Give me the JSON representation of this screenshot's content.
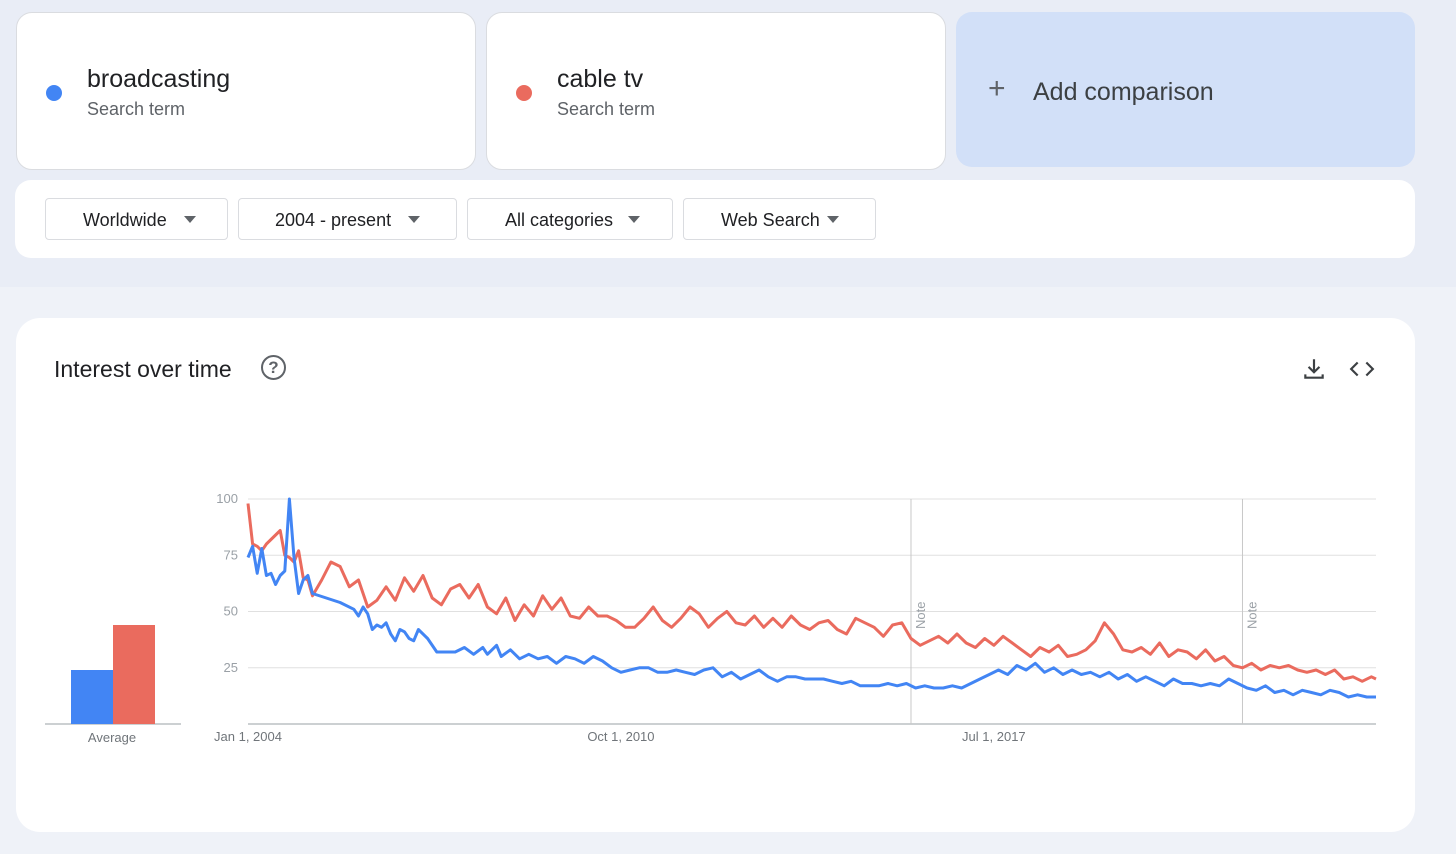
{
  "terms": [
    {
      "name": "broadcasting",
      "type": "Search term",
      "color": "#4285f4"
    },
    {
      "name": "cable tv",
      "type": "Search term",
      "color": "#ea6b5e"
    }
  ],
  "add_comparison": {
    "icon": "+",
    "label": "Add comparison"
  },
  "filters": {
    "region": "Worldwide",
    "time_range": "2004 - present",
    "category": "All categories",
    "search_type": "Web Search"
  },
  "section": {
    "title": "Interest over time",
    "help_icon": "?",
    "download_icon": "download-icon",
    "embed_icon": "embed-icon"
  },
  "chart_data": {
    "type": "line",
    "x_start": "2004-01",
    "x_end": "2024-06",
    "x_tick_labels": [
      "Jan 1, 2004",
      "Oct 1, 2010",
      "Jul 1, 2017"
    ],
    "x_tick_dates": [
      "2004-01",
      "2010-10",
      "2017-07"
    ],
    "y_ticks": [
      25,
      50,
      75,
      100
    ],
    "ylim": [
      0,
      100
    ],
    "grid": true,
    "notes": [
      {
        "date": "2016-01",
        "label": "Note"
      },
      {
        "date": "2022-01",
        "label": "Note"
      }
    ],
    "average": {
      "label": "Average",
      "values": [
        24,
        44
      ]
    },
    "series": [
      {
        "name": "broadcasting",
        "color": "#4285f4",
        "points": [
          [
            "2004-01",
            74
          ],
          [
            "2004-02",
            79
          ],
          [
            "2004-03",
            67
          ],
          [
            "2004-04",
            78
          ],
          [
            "2004-05",
            66
          ],
          [
            "2004-06",
            67
          ],
          [
            "2004-07",
            62
          ],
          [
            "2004-08",
            66
          ],
          [
            "2004-09",
            68
          ],
          [
            "2004-10",
            100
          ],
          [
            "2004-11",
            74
          ],
          [
            "2004-12",
            58
          ],
          [
            "2005-01",
            64
          ],
          [
            "2005-02",
            66
          ],
          [
            "2005-03",
            58
          ],
          [
            "2005-06",
            56
          ],
          [
            "2005-09",
            54
          ],
          [
            "2005-12",
            51
          ],
          [
            "2006-01",
            48
          ],
          [
            "2006-02",
            52
          ],
          [
            "2006-03",
            49
          ],
          [
            "2006-04",
            42
          ],
          [
            "2006-05",
            44
          ],
          [
            "2006-06",
            43
          ],
          [
            "2006-07",
            45
          ],
          [
            "2006-08",
            40
          ],
          [
            "2006-09",
            37
          ],
          [
            "2006-10",
            42
          ],
          [
            "2006-11",
            41
          ],
          [
            "2006-12",
            38
          ],
          [
            "2007-01",
            37
          ],
          [
            "2007-02",
            42
          ],
          [
            "2007-04",
            38
          ],
          [
            "2007-06",
            32
          ],
          [
            "2007-08",
            32
          ],
          [
            "2007-10",
            32
          ],
          [
            "2007-12",
            34
          ],
          [
            "2008-02",
            31
          ],
          [
            "2008-04",
            34
          ],
          [
            "2008-05",
            31
          ],
          [
            "2008-07",
            35
          ],
          [
            "2008-08",
            30
          ],
          [
            "2008-10",
            33
          ],
          [
            "2008-12",
            29
          ],
          [
            "2009-02",
            31
          ],
          [
            "2009-04",
            29
          ],
          [
            "2009-06",
            30
          ],
          [
            "2009-08",
            27
          ],
          [
            "2009-10",
            30
          ],
          [
            "2009-12",
            29
          ],
          [
            "2010-02",
            27
          ],
          [
            "2010-04",
            30
          ],
          [
            "2010-06",
            28
          ],
          [
            "2010-08",
            25
          ],
          [
            "2010-10",
            23
          ],
          [
            "2010-12",
            24
          ],
          [
            "2011-02",
            25
          ],
          [
            "2011-04",
            25
          ],
          [
            "2011-06",
            23
          ],
          [
            "2011-08",
            23
          ],
          [
            "2011-10",
            24
          ],
          [
            "2011-12",
            23
          ],
          [
            "2012-02",
            22
          ],
          [
            "2012-04",
            24
          ],
          [
            "2012-06",
            25
          ],
          [
            "2012-08",
            21
          ],
          [
            "2012-10",
            23
          ],
          [
            "2012-12",
            20
          ],
          [
            "2013-02",
            22
          ],
          [
            "2013-04",
            24
          ],
          [
            "2013-06",
            21
          ],
          [
            "2013-08",
            19
          ],
          [
            "2013-10",
            21
          ],
          [
            "2013-12",
            21
          ],
          [
            "2014-02",
            20
          ],
          [
            "2014-04",
            20
          ],
          [
            "2014-06",
            20
          ],
          [
            "2014-08",
            19
          ],
          [
            "2014-10",
            18
          ],
          [
            "2014-12",
            19
          ],
          [
            "2015-02",
            17
          ],
          [
            "2015-04",
            17
          ],
          [
            "2015-06",
            17
          ],
          [
            "2015-08",
            18
          ],
          [
            "2015-10",
            17
          ],
          [
            "2015-12",
            18
          ],
          [
            "2016-02",
            16
          ],
          [
            "2016-04",
            17
          ],
          [
            "2016-06",
            16
          ],
          [
            "2016-08",
            16
          ],
          [
            "2016-10",
            17
          ],
          [
            "2016-12",
            16
          ],
          [
            "2017-02",
            18
          ],
          [
            "2017-04",
            20
          ],
          [
            "2017-06",
            22
          ],
          [
            "2017-08",
            24
          ],
          [
            "2017-10",
            22
          ],
          [
            "2017-12",
            26
          ],
          [
            "2018-02",
            24
          ],
          [
            "2018-04",
            27
          ],
          [
            "2018-06",
            23
          ],
          [
            "2018-08",
            25
          ],
          [
            "2018-10",
            22
          ],
          [
            "2018-12",
            24
          ],
          [
            "2019-02",
            22
          ],
          [
            "2019-04",
            23
          ],
          [
            "2019-06",
            21
          ],
          [
            "2019-08",
            23
          ],
          [
            "2019-10",
            20
          ],
          [
            "2019-12",
            22
          ],
          [
            "2020-02",
            19
          ],
          [
            "2020-04",
            21
          ],
          [
            "2020-06",
            19
          ],
          [
            "2020-08",
            17
          ],
          [
            "2020-10",
            20
          ],
          [
            "2020-12",
            18
          ],
          [
            "2021-02",
            18
          ],
          [
            "2021-04",
            17
          ],
          [
            "2021-06",
            18
          ],
          [
            "2021-08",
            17
          ],
          [
            "2021-10",
            20
          ],
          [
            "2021-12",
            18
          ],
          [
            "2022-02",
            16
          ],
          [
            "2022-04",
            15
          ],
          [
            "2022-06",
            17
          ],
          [
            "2022-08",
            14
          ],
          [
            "2022-10",
            15
          ],
          [
            "2022-12",
            13
          ],
          [
            "2023-02",
            15
          ],
          [
            "2023-04",
            14
          ],
          [
            "2023-06",
            13
          ],
          [
            "2023-08",
            15
          ],
          [
            "2023-10",
            14
          ],
          [
            "2023-12",
            12
          ],
          [
            "2024-02",
            13
          ],
          [
            "2024-04",
            12
          ],
          [
            "2024-06",
            12
          ]
        ]
      },
      {
        "name": "cable tv",
        "color": "#ea6b5e",
        "points": [
          [
            "2004-01",
            98
          ],
          [
            "2004-02",
            80
          ],
          [
            "2004-03",
            79
          ],
          [
            "2004-04",
            77
          ],
          [
            "2004-05",
            80
          ],
          [
            "2004-06",
            82
          ],
          [
            "2004-07",
            84
          ],
          [
            "2004-08",
            86
          ],
          [
            "2004-09",
            75
          ],
          [
            "2004-10",
            74
          ],
          [
            "2004-11",
            72
          ],
          [
            "2004-12",
            77
          ],
          [
            "2005-01",
            65
          ],
          [
            "2005-02",
            64
          ],
          [
            "2005-03",
            57
          ],
          [
            "2005-05",
            64
          ],
          [
            "2005-07",
            72
          ],
          [
            "2005-09",
            70
          ],
          [
            "2005-11",
            61
          ],
          [
            "2006-01",
            64
          ],
          [
            "2006-03",
            52
          ],
          [
            "2006-05",
            55
          ],
          [
            "2006-07",
            61
          ],
          [
            "2006-09",
            55
          ],
          [
            "2006-11",
            65
          ],
          [
            "2007-01",
            59
          ],
          [
            "2007-03",
            66
          ],
          [
            "2007-05",
            56
          ],
          [
            "2007-07",
            53
          ],
          [
            "2007-09",
            60
          ],
          [
            "2007-11",
            62
          ],
          [
            "2008-01",
            56
          ],
          [
            "2008-03",
            62
          ],
          [
            "2008-05",
            52
          ],
          [
            "2008-07",
            49
          ],
          [
            "2008-09",
            56
          ],
          [
            "2008-11",
            46
          ],
          [
            "2009-01",
            53
          ],
          [
            "2009-03",
            48
          ],
          [
            "2009-05",
            57
          ],
          [
            "2009-07",
            51
          ],
          [
            "2009-09",
            56
          ],
          [
            "2009-11",
            48
          ],
          [
            "2010-01",
            47
          ],
          [
            "2010-03",
            52
          ],
          [
            "2010-05",
            48
          ],
          [
            "2010-07",
            48
          ],
          [
            "2010-09",
            46
          ],
          [
            "2010-11",
            43
          ],
          [
            "2011-01",
            43
          ],
          [
            "2011-03",
            47
          ],
          [
            "2011-05",
            52
          ],
          [
            "2011-07",
            46
          ],
          [
            "2011-09",
            43
          ],
          [
            "2011-11",
            47
          ],
          [
            "2012-01",
            52
          ],
          [
            "2012-03",
            49
          ],
          [
            "2012-05",
            43
          ],
          [
            "2012-07",
            47
          ],
          [
            "2012-09",
            50
          ],
          [
            "2012-11",
            45
          ],
          [
            "2013-01",
            44
          ],
          [
            "2013-03",
            48
          ],
          [
            "2013-05",
            43
          ],
          [
            "2013-07",
            47
          ],
          [
            "2013-09",
            43
          ],
          [
            "2013-11",
            48
          ],
          [
            "2014-01",
            44
          ],
          [
            "2014-03",
            42
          ],
          [
            "2014-05",
            45
          ],
          [
            "2014-07",
            46
          ],
          [
            "2014-09",
            42
          ],
          [
            "2014-11",
            40
          ],
          [
            "2015-01",
            47
          ],
          [
            "2015-03",
            45
          ],
          [
            "2015-05",
            43
          ],
          [
            "2015-07",
            39
          ],
          [
            "2015-09",
            44
          ],
          [
            "2015-11",
            45
          ],
          [
            "2016-01",
            38
          ],
          [
            "2016-03",
            35
          ],
          [
            "2016-05",
            37
          ],
          [
            "2016-07",
            39
          ],
          [
            "2016-09",
            36
          ],
          [
            "2016-11",
            40
          ],
          [
            "2017-01",
            36
          ],
          [
            "2017-03",
            34
          ],
          [
            "2017-05",
            38
          ],
          [
            "2017-07",
            35
          ],
          [
            "2017-09",
            39
          ],
          [
            "2017-11",
            36
          ],
          [
            "2018-01",
            33
          ],
          [
            "2018-03",
            30
          ],
          [
            "2018-05",
            34
          ],
          [
            "2018-07",
            32
          ],
          [
            "2018-09",
            35
          ],
          [
            "2018-11",
            30
          ],
          [
            "2019-01",
            31
          ],
          [
            "2019-03",
            33
          ],
          [
            "2019-05",
            37
          ],
          [
            "2019-07",
            45
          ],
          [
            "2019-09",
            40
          ],
          [
            "2019-11",
            33
          ],
          [
            "2020-01",
            32
          ],
          [
            "2020-03",
            34
          ],
          [
            "2020-05",
            31
          ],
          [
            "2020-07",
            36
          ],
          [
            "2020-09",
            30
          ],
          [
            "2020-11",
            33
          ],
          [
            "2021-01",
            32
          ],
          [
            "2021-03",
            29
          ],
          [
            "2021-05",
            33
          ],
          [
            "2021-07",
            28
          ],
          [
            "2021-09",
            30
          ],
          [
            "2021-11",
            26
          ],
          [
            "2022-01",
            25
          ],
          [
            "2022-03",
            27
          ],
          [
            "2022-05",
            24
          ],
          [
            "2022-07",
            26
          ],
          [
            "2022-09",
            25
          ],
          [
            "2022-11",
            26
          ],
          [
            "2023-01",
            24
          ],
          [
            "2023-03",
            23
          ],
          [
            "2023-05",
            24
          ],
          [
            "2023-07",
            22
          ],
          [
            "2023-09",
            24
          ],
          [
            "2023-11",
            20
          ],
          [
            "2024-01",
            21
          ],
          [
            "2024-03",
            19
          ],
          [
            "2024-05",
            21
          ],
          [
            "2024-06",
            20
          ]
        ]
      }
    ]
  }
}
